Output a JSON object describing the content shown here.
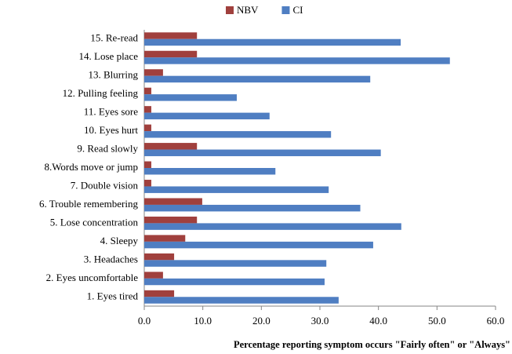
{
  "chart_data": {
    "type": "hbar",
    "xlabel": "Percentage reporting symptom occurs \"Fairly often\" or \"Always\"",
    "categories": [
      "15. Re-read",
      "14. Lose place",
      "13. Blurring",
      "12. Pulling feeling",
      "11. Eyes sore",
      "10. Eyes hurt",
      "9. Read slowly",
      "8.Words move or jump",
      "7. Double vision",
      "6. Trouble remembering",
      "5. Lose concentration",
      "4. Sleepy",
      "3. Headaches",
      "2. Eyes uncomfortable",
      "1. Eyes tired"
    ],
    "series": [
      {
        "name": "NBV",
        "color": "#a0403d",
        "values": [
          9.0,
          9.0,
          3.2,
          1.2,
          1.2,
          1.2,
          9.0,
          1.2,
          1.2,
          9.9,
          9.0,
          7.0,
          5.1,
          3.2,
          5.1
        ]
      },
      {
        "name": "CI",
        "color": "#4f7ec2",
        "values": [
          43.8,
          52.2,
          38.6,
          15.8,
          21.4,
          31.9,
          40.4,
          22.4,
          31.5,
          36.9,
          43.9,
          39.1,
          31.1,
          30.8,
          33.2
        ]
      }
    ],
    "xlim": [
      0,
      60
    ],
    "xticks": [
      {
        "value": 0,
        "label": "0.0"
      },
      {
        "value": 10,
        "label": "10.0"
      },
      {
        "value": 20,
        "label": "20.0"
      },
      {
        "value": 30,
        "label": "30.0"
      },
      {
        "value": 40,
        "label": "40.0"
      },
      {
        "value": 50,
        "label": "50.0"
      },
      {
        "value": 60,
        "label": "60.0"
      }
    ],
    "legend": "top"
  }
}
